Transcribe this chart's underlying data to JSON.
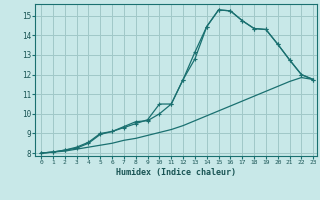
{
  "xlabel": "Humidex (Indice chaleur)",
  "bg_color": "#c8e8e8",
  "grid_color": "#a0c8c8",
  "line_color": "#1a7070",
  "xlim": [
    -0.5,
    23.3
  ],
  "ylim": [
    7.85,
    15.6
  ],
  "xticks": [
    0,
    1,
    2,
    3,
    4,
    5,
    6,
    7,
    8,
    9,
    10,
    11,
    12,
    13,
    14,
    15,
    16,
    17,
    18,
    19,
    20,
    21,
    22,
    23
  ],
  "yticks": [
    8,
    9,
    10,
    11,
    12,
    13,
    14,
    15
  ],
  "line1_x": [
    0,
    1,
    2,
    3,
    4,
    5,
    6,
    7,
    8,
    9,
    10,
    11,
    12,
    13,
    14,
    15,
    16,
    17,
    18,
    19,
    20,
    21,
    22,
    23
  ],
  "line1_y": [
    8.0,
    8.05,
    8.1,
    8.2,
    8.3,
    8.4,
    8.5,
    8.65,
    8.75,
    8.9,
    9.05,
    9.2,
    9.4,
    9.65,
    9.9,
    10.15,
    10.4,
    10.65,
    10.9,
    11.15,
    11.4,
    11.65,
    11.85,
    11.75
  ],
  "line2_x": [
    0,
    1,
    2,
    3,
    4,
    5,
    6,
    7,
    8,
    9,
    10,
    11,
    12,
    13,
    14,
    15,
    16,
    17,
    18,
    19,
    20,
    21,
    22,
    23
  ],
  "line2_y": [
    8.0,
    8.05,
    8.15,
    8.25,
    8.5,
    8.95,
    9.1,
    9.3,
    9.5,
    9.7,
    10.5,
    10.5,
    11.75,
    12.8,
    14.45,
    15.3,
    15.25,
    14.75,
    14.35,
    14.3,
    13.55,
    12.75,
    12.0,
    11.75
  ],
  "line3_x": [
    0,
    1,
    2,
    3,
    4,
    5,
    6,
    7,
    8,
    9,
    10,
    11,
    12,
    13,
    14,
    15,
    16,
    17,
    18,
    19,
    20,
    21,
    22,
    23
  ],
  "line3_y": [
    8.0,
    8.05,
    8.15,
    8.3,
    8.55,
    9.0,
    9.1,
    9.35,
    9.6,
    9.65,
    10.0,
    10.5,
    11.75,
    13.15,
    14.45,
    15.3,
    15.25,
    14.75,
    14.35,
    14.3,
    13.55,
    12.75,
    12.0,
    11.75
  ]
}
